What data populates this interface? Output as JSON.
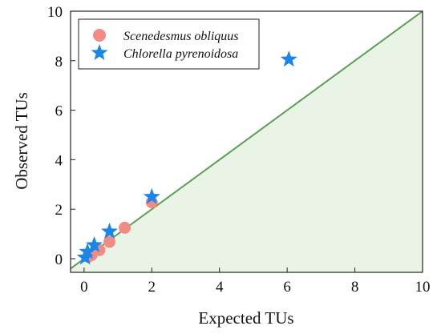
{
  "chart_data": {
    "type": "scatter",
    "xlabel": "Expected TUs",
    "ylabel": "Observed TUs",
    "xlim": [
      -0.4,
      10
    ],
    "ylim": [
      -0.55,
      10
    ],
    "x_ticks": [
      "0",
      "2",
      "4",
      "6",
      "8",
      "10"
    ],
    "y_ticks": [
      "0",
      "2",
      "4",
      "6",
      "8",
      "10"
    ],
    "legend_position": "top-left",
    "reference_line": "y = x",
    "shade": "below reference line",
    "series": [
      {
        "name": "Scenedesmus obliquus",
        "marker": "circle",
        "color": "#f08c84",
        "x": [
          0.12,
          0.22,
          0.45,
          0.75,
          1.2,
          2.0
        ],
        "y": [
          0.08,
          0.15,
          0.35,
          0.68,
          1.25,
          2.28
        ]
      },
      {
        "name": "Chlorella pyrenoidosa",
        "marker": "star",
        "color": "#1a86e8",
        "x": [
          0.03,
          0.1,
          0.3,
          0.75,
          2.0,
          6.05
        ],
        "y": [
          0.05,
          0.28,
          0.55,
          1.1,
          2.5,
          8.05
        ]
      }
    ]
  }
}
